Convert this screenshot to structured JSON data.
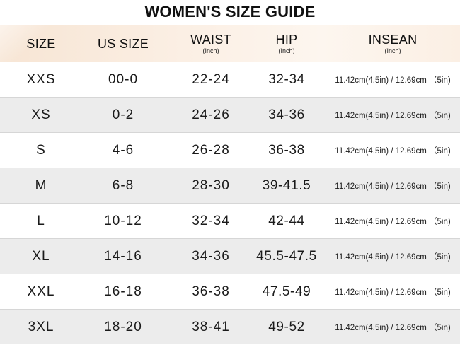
{
  "title": "WOMEN'S SIZE GUIDE",
  "header": {
    "size": "SIZE",
    "us_size": "US SIZE",
    "waist": "WAIST",
    "waist_unit": "(Inch)",
    "hip": "HIP",
    "hip_unit": "(Inch)",
    "inseam": "INSEAN",
    "inseam_unit": "(Inch)"
  },
  "rows": [
    {
      "size": "XXS",
      "us": "00-0",
      "waist": "22-24",
      "hip": "32-34",
      "inseam": "11.42cm(4.5in) / 12.69cm （5in)"
    },
    {
      "size": "XS",
      "us": "0-2",
      "waist": "24-26",
      "hip": "34-36",
      "inseam": "11.42cm(4.5in) / 12.69cm （5in)"
    },
    {
      "size": "S",
      "us": "4-6",
      "waist": "26-28",
      "hip": "36-38",
      "inseam": "11.42cm(4.5in) / 12.69cm （5in)"
    },
    {
      "size": "M",
      "us": "6-8",
      "waist": "28-30",
      "hip": "39-41.5",
      "inseam": "11.42cm(4.5in) / 12.69cm （5in)"
    },
    {
      "size": "L",
      "us": "10-12",
      "waist": "32-34",
      "hip": "42-44",
      "inseam": "11.42cm(4.5in) / 12.69cm （5in)"
    },
    {
      "size": "XL",
      "us": "14-16",
      "waist": "34-36",
      "hip": "45.5-47.5",
      "inseam": "11.42cm(4.5in) / 12.69cm （5in)"
    },
    {
      "size": "XXL",
      "us": "16-18",
      "waist": "36-38",
      "hip": "47.5-49",
      "inseam": "11.42cm(4.5in) / 12.69cm （5in)"
    },
    {
      "size": "3XL",
      "us": "18-20",
      "waist": "38-41",
      "hip": "49-52",
      "inseam": "11.42cm(4.5in) / 12.69cm （5in)"
    }
  ]
}
